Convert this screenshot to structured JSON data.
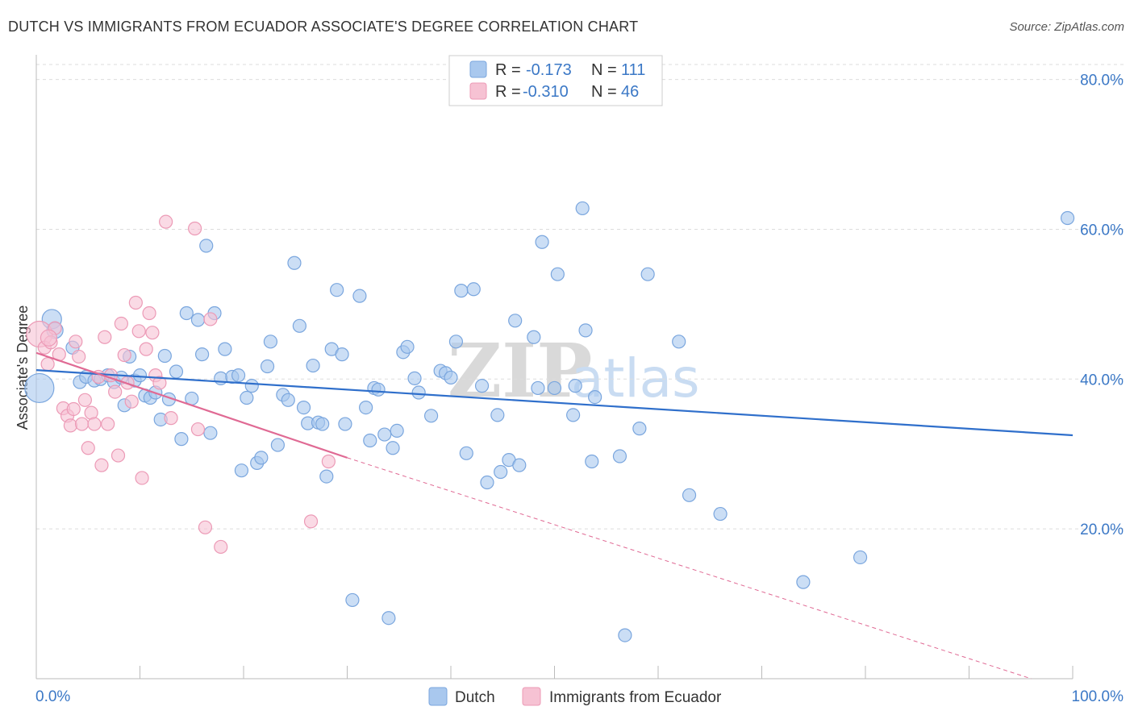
{
  "header": {
    "title": "DUTCH VS IMMIGRANTS FROM ECUADOR ASSOCIATE'S DEGREE CORRELATION CHART",
    "source": "Source: ZipAtlas.com"
  },
  "watermark": {
    "part1": "ZIP",
    "part2": "atlas"
  },
  "legend": {
    "r_label": "R =",
    "n_label": "N =",
    "rows": [
      {
        "r": "-0.173",
        "n": "111"
      },
      {
        "r": "-0.310",
        "n": "46"
      }
    ]
  },
  "bottom_legend": [
    "Dutch",
    "Immigrants from Ecuador"
  ],
  "colors": {
    "dutch_fill": "#a9c8ee",
    "dutch_stroke": "#7aa6de",
    "dutch_line": "#2f6fcb",
    "ecuador_fill": "#f6c2d3",
    "ecuador_stroke": "#ec9ab6",
    "ecuador_line": "#e06a94",
    "axis_text": "#3b78c6",
    "grid": "#dddddd"
  },
  "chart_data": {
    "type": "scatter",
    "title": "DUTCH VS IMMIGRANTS FROM ECUADOR ASSOCIATE'S DEGREE CORRELATION CHART",
    "xlabel": "",
    "ylabel": "Associate's Degree",
    "xlim": [
      0,
      100
    ],
    "ylim": [
      0,
      82
    ],
    "x_tick_labels": [
      "0.0%",
      "100.0%"
    ],
    "y_ticks": [
      20,
      40,
      60,
      80
    ],
    "y_tick_labels": [
      "20.0%",
      "40.0%",
      "60.0%",
      "80.0%"
    ],
    "grid": true,
    "legend_placement": "top-center",
    "series": [
      {
        "name": "Dutch",
        "r": -0.173,
        "n": 111,
        "trend": {
          "x": [
            0,
            100
          ],
          "y": [
            41.2,
            32.5
          ]
        },
        "points": [
          [
            0.3,
            38.8,
            18
          ],
          [
            1.5,
            48.0,
            12
          ],
          [
            1.8,
            46.5,
            10
          ],
          [
            3.5,
            44.2,
            8
          ],
          [
            4.2,
            39.6,
            8
          ],
          [
            4.8,
            40.3,
            8
          ],
          [
            5.6,
            39.8,
            8
          ],
          [
            6.2,
            40.0,
            8
          ],
          [
            6.9,
            40.5,
            8
          ],
          [
            7.5,
            39.6,
            8
          ],
          [
            8.2,
            40.2,
            8
          ],
          [
            8.5,
            36.5,
            8
          ],
          [
            9.0,
            43.0,
            8
          ],
          [
            9.5,
            39.8,
            8
          ],
          [
            10.0,
            40.5,
            8
          ],
          [
            10.5,
            37.8,
            8
          ],
          [
            11.0,
            37.5,
            8
          ],
          [
            11.5,
            38.2,
            8
          ],
          [
            12.0,
            34.6,
            8
          ],
          [
            12.4,
            43.1,
            8
          ],
          [
            12.8,
            37.3,
            8
          ],
          [
            13.5,
            41.0,
            8
          ],
          [
            14.0,
            32.0,
            8
          ],
          [
            14.5,
            48.8,
            8
          ],
          [
            15.0,
            37.4,
            8
          ],
          [
            15.6,
            47.9,
            8
          ],
          [
            16.0,
            43.3,
            8
          ],
          [
            16.4,
            57.8,
            8
          ],
          [
            16.8,
            32.8,
            8
          ],
          [
            17.2,
            48.8,
            8
          ],
          [
            17.8,
            40.1,
            8
          ],
          [
            18.2,
            44.0,
            8
          ],
          [
            18.9,
            40.3,
            8
          ],
          [
            19.5,
            40.5,
            8
          ],
          [
            19.8,
            27.8,
            8
          ],
          [
            20.3,
            37.5,
            8
          ],
          [
            20.8,
            39.1,
            8
          ],
          [
            21.3,
            28.8,
            8
          ],
          [
            21.7,
            29.5,
            8
          ],
          [
            22.3,
            41.7,
            8
          ],
          [
            22.6,
            45.0,
            8
          ],
          [
            23.3,
            31.2,
            8
          ],
          [
            23.8,
            37.9,
            8
          ],
          [
            24.3,
            37.2,
            8
          ],
          [
            24.9,
            55.5,
            8
          ],
          [
            25.4,
            47.1,
            8
          ],
          [
            25.8,
            36.2,
            8
          ],
          [
            26.2,
            34.1,
            8
          ],
          [
            26.7,
            41.8,
            8
          ],
          [
            27.2,
            34.2,
            8
          ],
          [
            27.6,
            34.0,
            8
          ],
          [
            28.0,
            27.0,
            8
          ],
          [
            28.5,
            44.0,
            8
          ],
          [
            29.0,
            51.9,
            8
          ],
          [
            29.5,
            43.3,
            8
          ],
          [
            29.8,
            34.0,
            8
          ],
          [
            30.5,
            10.5,
            8
          ],
          [
            31.2,
            51.1,
            8
          ],
          [
            31.8,
            36.2,
            8
          ],
          [
            32.2,
            31.8,
            8
          ],
          [
            32.6,
            38.8,
            8
          ],
          [
            33.0,
            38.6,
            8
          ],
          [
            33.6,
            32.6,
            8
          ],
          [
            34.0,
            8.1,
            8
          ],
          [
            34.4,
            30.8,
            8
          ],
          [
            34.8,
            33.1,
            8
          ],
          [
            35.4,
            43.6,
            8
          ],
          [
            35.8,
            44.3,
            8
          ],
          [
            36.5,
            40.1,
            8
          ],
          [
            36.9,
            38.2,
            8
          ],
          [
            38.1,
            35.1,
            8
          ],
          [
            39.0,
            41.1,
            8
          ],
          [
            39.5,
            40.8,
            8
          ],
          [
            40.0,
            40.2,
            8
          ],
          [
            40.5,
            45.0,
            8
          ],
          [
            41.0,
            51.8,
            8
          ],
          [
            41.5,
            30.1,
            8
          ],
          [
            42.2,
            52.0,
            8
          ],
          [
            43.0,
            39.1,
            8
          ],
          [
            43.5,
            26.2,
            8
          ],
          [
            44.5,
            35.2,
            8
          ],
          [
            44.8,
            27.6,
            8
          ],
          [
            45.6,
            29.2,
            8
          ],
          [
            46.2,
            47.8,
            8
          ],
          [
            46.6,
            28.5,
            8
          ],
          [
            48.0,
            45.6,
            8
          ],
          [
            48.4,
            38.8,
            8
          ],
          [
            48.8,
            58.3,
            8
          ],
          [
            50.0,
            38.8,
            8
          ],
          [
            50.3,
            54.0,
            8
          ],
          [
            51.8,
            35.2,
            8
          ],
          [
            52.0,
            39.1,
            8
          ],
          [
            52.7,
            62.8,
            8
          ],
          [
            53.0,
            46.5,
            8
          ],
          [
            53.6,
            29.0,
            8
          ],
          [
            53.9,
            37.6,
            8
          ],
          [
            56.3,
            29.7,
            8
          ],
          [
            56.8,
            5.8,
            8
          ],
          [
            58.2,
            33.4,
            8
          ],
          [
            59.0,
            54.0,
            8
          ],
          [
            62.0,
            45.0,
            8
          ],
          [
            63.0,
            24.5,
            8
          ],
          [
            66.0,
            22.0,
            8
          ],
          [
            74.0,
            12.9,
            8
          ],
          [
            79.5,
            16.2,
            8
          ],
          [
            99.5,
            61.5,
            8
          ]
        ]
      },
      {
        "name": "Immigrants from Ecuador",
        "r": -0.31,
        "n": 46,
        "trend": {
          "x": [
            0,
            30
          ],
          "y": [
            43.5,
            29.5
          ]
        },
        "trend_extended": {
          "x": [
            30,
            96
          ],
          "y": [
            29.5,
            0
          ]
        },
        "points": [
          [
            0.3,
            46.0,
            16
          ],
          [
            0.8,
            44.2,
            8
          ],
          [
            1.1,
            42.0,
            8
          ],
          [
            1.4,
            44.9,
            8
          ],
          [
            1.8,
            46.8,
            8
          ],
          [
            2.2,
            43.3,
            8
          ],
          [
            2.6,
            36.1,
            8
          ],
          [
            3.0,
            35.1,
            8
          ],
          [
            3.3,
            33.8,
            8
          ],
          [
            3.6,
            36.0,
            8
          ],
          [
            3.8,
            45.0,
            8
          ],
          [
            4.1,
            43.0,
            8
          ],
          [
            4.4,
            34.0,
            8
          ],
          [
            4.7,
            37.2,
            8
          ],
          [
            5.0,
            30.8,
            8
          ],
          [
            5.3,
            35.5,
            8
          ],
          [
            5.6,
            34.0,
            8
          ],
          [
            6.0,
            40.3,
            8
          ],
          [
            6.3,
            28.5,
            8
          ],
          [
            6.6,
            45.6,
            8
          ],
          [
            6.9,
            34.0,
            8
          ],
          [
            7.2,
            40.5,
            8
          ],
          [
            7.6,
            38.3,
            8
          ],
          [
            7.9,
            29.8,
            8
          ],
          [
            8.2,
            47.4,
            8
          ],
          [
            8.5,
            43.2,
            8
          ],
          [
            8.8,
            39.5,
            8
          ],
          [
            9.2,
            37.0,
            8
          ],
          [
            9.6,
            50.2,
            8
          ],
          [
            9.9,
            46.4,
            8
          ],
          [
            10.2,
            26.8,
            8
          ],
          [
            10.6,
            44.0,
            8
          ],
          [
            10.9,
            48.8,
            8
          ],
          [
            11.2,
            46.2,
            8
          ],
          [
            11.5,
            40.5,
            8
          ],
          [
            11.9,
            39.5,
            8
          ],
          [
            12.5,
            61.0,
            8
          ],
          [
            13.0,
            34.8,
            8
          ],
          [
            15.3,
            60.1,
            8
          ],
          [
            15.6,
            33.3,
            8
          ],
          [
            16.3,
            20.2,
            8
          ],
          [
            16.8,
            48.0,
            8
          ],
          [
            17.8,
            17.6,
            8
          ],
          [
            26.5,
            21.0,
            8
          ],
          [
            28.2,
            29.0,
            8
          ],
          [
            1.2,
            45.5,
            10
          ]
        ]
      }
    ]
  }
}
